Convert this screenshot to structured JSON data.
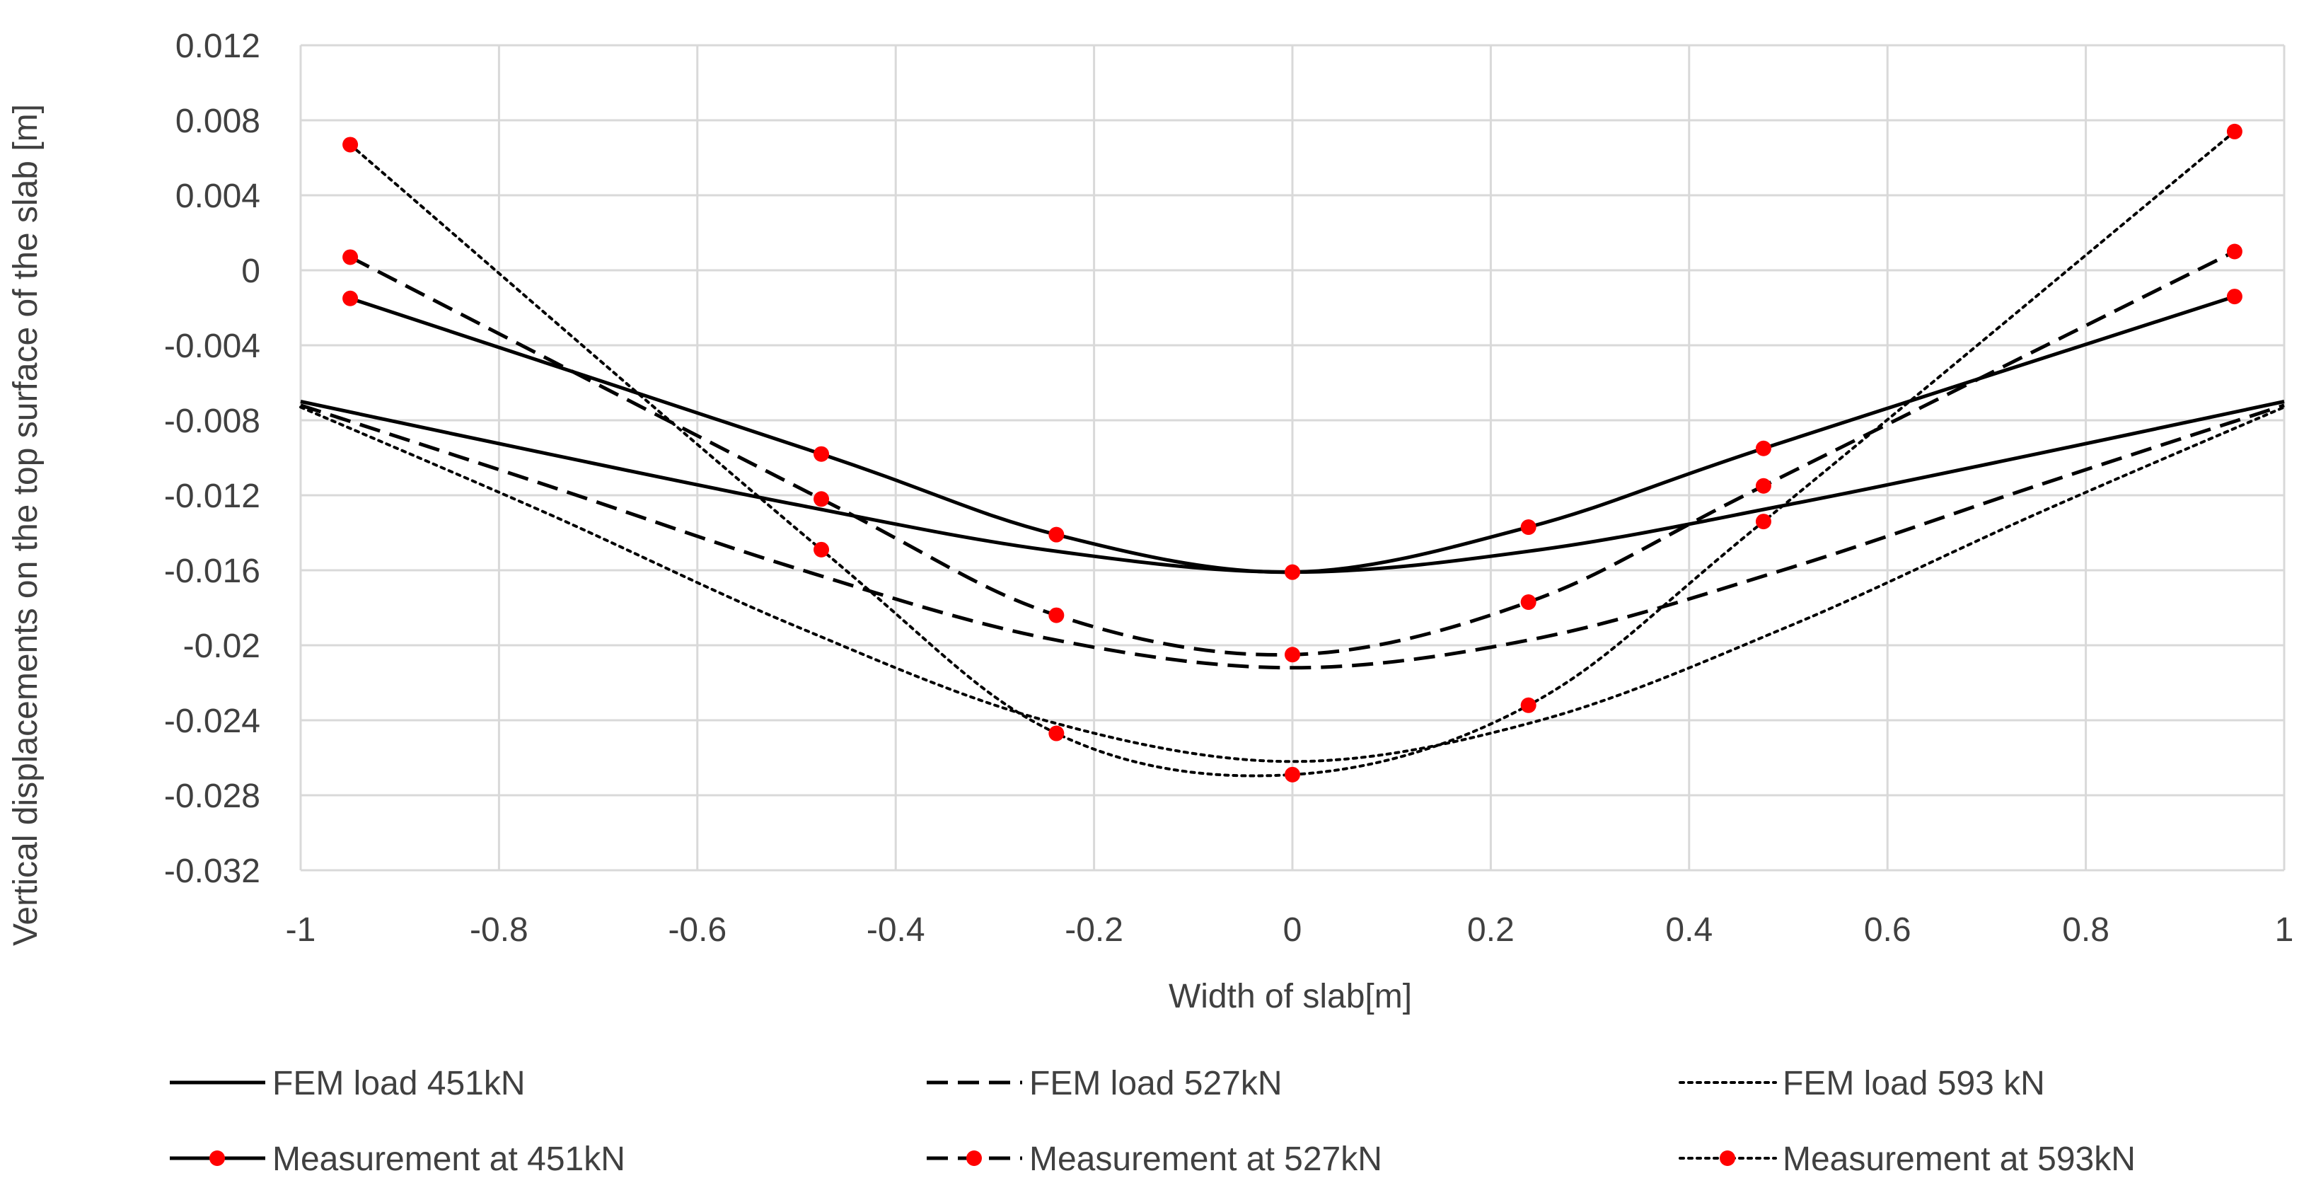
{
  "chart_data": {
    "type": "line",
    "title": "",
    "xlabel": "Width of slab[m]",
    "ylabel": "Vertical displacements on the top surface of the slab [m]",
    "xlim": [
      -1,
      1
    ],
    "ylim": [
      -0.032,
      0.012
    ],
    "x_ticks": [
      -1,
      -0.8,
      -0.6,
      -0.4,
      -0.2,
      0,
      0.2,
      0.4,
      0.6,
      0.8,
      1
    ],
    "x_tick_labels": [
      "-1",
      "-0.8",
      "-0.6",
      "-0.4",
      "-0.2",
      "0",
      "0.2",
      "0.4",
      "0.6",
      "0.8",
      "1"
    ],
    "y_ticks": [
      0.012,
      0.008,
      0.004,
      0,
      -0.004,
      -0.008,
      -0.012,
      -0.016,
      -0.02,
      -0.024,
      -0.028,
      -0.032
    ],
    "y_tick_labels": [
      "0.012",
      "0.008",
      "0.004",
      "0",
      "-0.004",
      "-0.008",
      "-0.012",
      "-0.016",
      "-0.02",
      "-0.024",
      "-0.028",
      "-0.032"
    ],
    "grid": true,
    "legend_position": "bottom",
    "series": [
      {
        "name": "FEM load 451kN",
        "style": "solid",
        "markers": false,
        "x": [
          -1,
          -0.75,
          -0.5,
          -0.25,
          0,
          0.25,
          0.5,
          0.75,
          1
        ],
        "y": [
          -0.007,
          -0.0098,
          -0.0125,
          -0.0149,
          -0.0161,
          -0.0149,
          -0.0125,
          -0.0098,
          -0.007
        ]
      },
      {
        "name": "FEM load 527kN",
        "style": "dashed",
        "markers": false,
        "x": [
          -1,
          -0.75,
          -0.5,
          -0.25,
          0,
          0.25,
          0.5,
          0.75,
          1
        ],
        "y": [
          -0.0072,
          -0.0115,
          -0.0159,
          -0.0196,
          -0.0212,
          -0.0196,
          -0.0159,
          -0.0115,
          -0.0072
        ]
      },
      {
        "name": "FEM load 593 kN",
        "style": "dotted",
        "markers": false,
        "x": [
          -1,
          -0.75,
          -0.5,
          -0.25,
          0,
          0.25,
          0.5,
          0.75,
          1
        ],
        "y": [
          -0.0073,
          -0.013,
          -0.019,
          -0.024,
          -0.0262,
          -0.024,
          -0.019,
          -0.013,
          -0.0073
        ]
      },
      {
        "name": "Measurement at 451kN",
        "style": "solid",
        "markers": true,
        "x": [
          -0.95,
          -0.475,
          -0.238,
          0,
          0.238,
          0.475,
          0.95
        ],
        "y": [
          -0.0015,
          -0.0098,
          -0.0141,
          -0.0161,
          -0.0137,
          -0.0095,
          -0.0014
        ]
      },
      {
        "name": "Measurement at 527kN",
        "style": "dashed",
        "markers": true,
        "x": [
          -0.95,
          -0.475,
          -0.238,
          0,
          0.238,
          0.475,
          0.95
        ],
        "y": [
          0.0007,
          -0.0122,
          -0.0184,
          -0.0205,
          -0.0177,
          -0.0115,
          0.001
        ]
      },
      {
        "name": "Measurement at 593kN",
        "style": "dotted",
        "markers": true,
        "x": [
          -0.95,
          -0.475,
          -0.238,
          0,
          0.238,
          0.475,
          0.95
        ],
        "y": [
          0.0067,
          -0.0149,
          -0.0247,
          -0.0269,
          -0.0232,
          -0.0134,
          0.0074
        ]
      }
    ]
  },
  "colors": {
    "line": "#000000",
    "marker": "#ff0000",
    "grid": "#d9d9d9",
    "text": "#404040"
  }
}
